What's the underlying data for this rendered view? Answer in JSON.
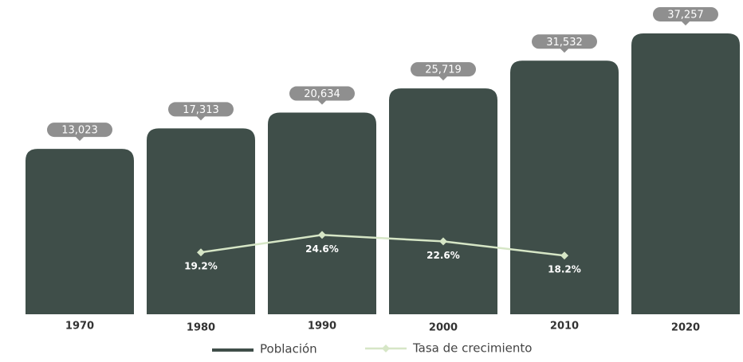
{
  "chart_data": {
    "type": "bar",
    "categories": [
      "1970",
      "1980",
      "1990",
      "2000",
      "2010",
      "2020"
    ],
    "series": [
      {
        "name": "Población",
        "color": "#3f4e49",
        "values": [
          13023,
          17313,
          20634,
          25719,
          31532,
          37257
        ],
        "value_labels": [
          "13,023",
          "17,313",
          "20,634",
          "25,719",
          "31,532",
          "37,257"
        ]
      },
      {
        "name": "Tasa de crecimiento",
        "color": "#d6e6c6",
        "type": "line",
        "axis": "y2",
        "values": [
          null,
          19.2,
          24.6,
          22.6,
          18.2,
          null
        ],
        "value_labels": [
          null,
          "19.2%",
          "24.6%",
          "22.6%",
          "18.2%",
          null
        ]
      }
    ],
    "ylim": [
      -21700,
      42600
    ],
    "y2lim": [
      0,
      95
    ],
    "legend": "bottom"
  }
}
